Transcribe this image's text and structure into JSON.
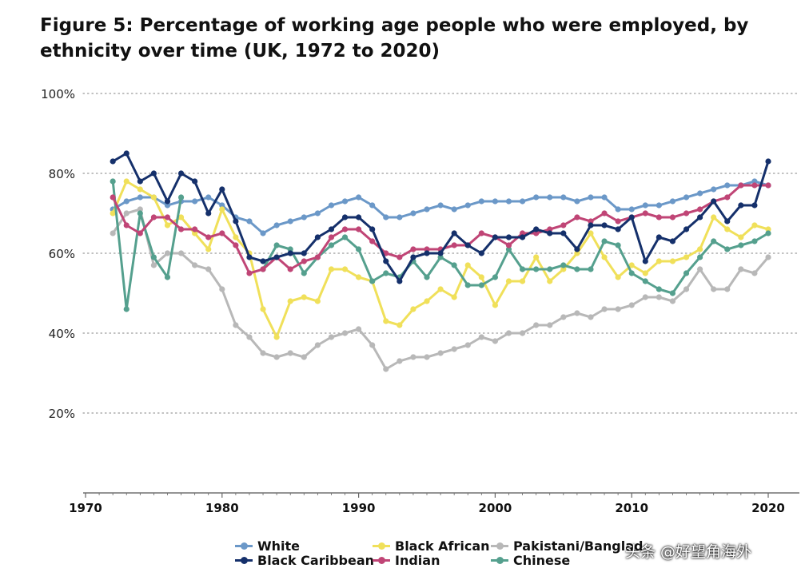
{
  "chart_data": {
    "type": "line",
    "title": "Figure 5: Percentage of working age people who were employed, by ethnicity over time (UK, 1972 to 2020)",
    "xlabel": "",
    "ylabel": "",
    "xlim": [
      1970,
      2022
    ],
    "ylim": [
      0,
      100
    ],
    "yticks": [
      20,
      40,
      60,
      80,
      100
    ],
    "ytick_labels": [
      "20%",
      "40%",
      "60%",
      "80%",
      "100%"
    ],
    "xticks": [
      1970,
      1980,
      1990,
      2000,
      2010,
      2020
    ],
    "xtick_labels": [
      "1970",
      "1980",
      "1990",
      "2000",
      "2010",
      "2020"
    ],
    "grid": "horizontal dotted",
    "legend_position": "bottom",
    "x": [
      1972,
      1973,
      1974,
      1975,
      1976,
      1977,
      1978,
      1979,
      1980,
      1981,
      1982,
      1983,
      1984,
      1985,
      1986,
      1987,
      1988,
      1989,
      1990,
      1991,
      1992,
      1993,
      1994,
      1995,
      1996,
      1997,
      1998,
      1999,
      2000,
      2001,
      2002,
      2003,
      2004,
      2005,
      2006,
      2007,
      2008,
      2009,
      2010,
      2011,
      2012,
      2013,
      2014,
      2015,
      2016,
      2017,
      2018,
      2019,
      2020
    ],
    "series": [
      {
        "name": "White",
        "color": "#6b98c8",
        "values": [
          71,
          73,
          74,
          74,
          72,
          73,
          73,
          74,
          72,
          69,
          68,
          65,
          67,
          68,
          69,
          70,
          72,
          73,
          74,
          72,
          69,
          69,
          70,
          71,
          72,
          71,
          72,
          73,
          73,
          73,
          73,
          74,
          74,
          74,
          73,
          74,
          74,
          71,
          71,
          72,
          72,
          73,
          74,
          75,
          76,
          77,
          77,
          78,
          77
        ]
      },
      {
        "name": "Black African",
        "color": "#f0e05a",
        "values": [
          70,
          78,
          76,
          74,
          67,
          69,
          65,
          61,
          71,
          64,
          60,
          46,
          39,
          48,
          49,
          48,
          56,
          56,
          54,
          53,
          43,
          42,
          46,
          48,
          51,
          49,
          57,
          54,
          47,
          53,
          53,
          59,
          53,
          56,
          60,
          65,
          59,
          54,
          57,
          55,
          58,
          58,
          59,
          61,
          69,
          66,
          64,
          67,
          66
        ]
      },
      {
        "name": "Pakistani/Bangladeshi",
        "color": "#b8b8b8",
        "values": [
          65,
          70,
          71,
          57,
          60,
          60,
          57,
          56,
          51,
          42,
          39,
          35,
          34,
          35,
          34,
          37,
          39,
          40,
          41,
          37,
          31,
          33,
          34,
          34,
          35,
          36,
          37,
          39,
          38,
          40,
          40,
          42,
          42,
          44,
          45,
          44,
          46,
          46,
          47,
          49,
          49,
          48,
          51,
          56,
          51,
          51,
          56,
          55,
          59
        ]
      },
      {
        "name": "Black Caribbean",
        "color": "#15306b",
        "values": [
          83,
          85,
          78,
          80,
          73,
          80,
          78,
          70,
          76,
          68,
          59,
          58,
          59,
          60,
          60,
          64,
          66,
          69,
          69,
          66,
          58,
          53,
          59,
          60,
          60,
          65,
          62,
          60,
          64,
          64,
          64,
          66,
          65,
          65,
          61,
          67,
          67,
          66,
          69,
          58,
          64,
          63,
          66,
          69,
          73,
          68,
          72,
          72,
          83
        ]
      },
      {
        "name": "Indian",
        "color": "#c04576",
        "values": [
          74,
          67,
          65,
          69,
          69,
          66,
          66,
          64,
          65,
          62,
          55,
          56,
          59,
          56,
          58,
          59,
          64,
          66,
          66,
          63,
          60,
          59,
          61,
          61,
          61,
          62,
          62,
          65,
          64,
          62,
          65,
          65,
          66,
          67,
          69,
          68,
          70,
          68,
          69,
          70,
          69,
          69,
          70,
          71,
          73,
          74,
          77,
          77,
          77
        ]
      },
      {
        "name": "Chinese",
        "color": "#55a08e",
        "values": [
          78,
          46,
          70,
          59,
          54,
          74,
          null,
          null,
          null,
          null,
          null,
          56,
          62,
          61,
          55,
          59,
          62,
          64,
          61,
          53,
          55,
          54,
          58,
          54,
          59,
          57,
          52,
          52,
          54,
          61,
          56,
          56,
          56,
          57,
          56,
          56,
          63,
          62,
          55,
          53,
          51,
          50,
          55,
          59,
          63,
          61,
          62,
          63,
          65
        ]
      }
    ]
  },
  "legend": {
    "items": [
      {
        "label": "White",
        "color": "#6b98c8"
      },
      {
        "label": "Black African",
        "color": "#f0e05a"
      },
      {
        "label": "Pakistani/Banglad",
        "color": "#b8b8b8"
      },
      {
        "label": "Black Caribbean",
        "color": "#15306b"
      },
      {
        "label": "Indian",
        "color": "#c04576"
      },
      {
        "label": "Chinese",
        "color": "#55a08e"
      }
    ]
  },
  "watermark": "头条 @好望角海外"
}
